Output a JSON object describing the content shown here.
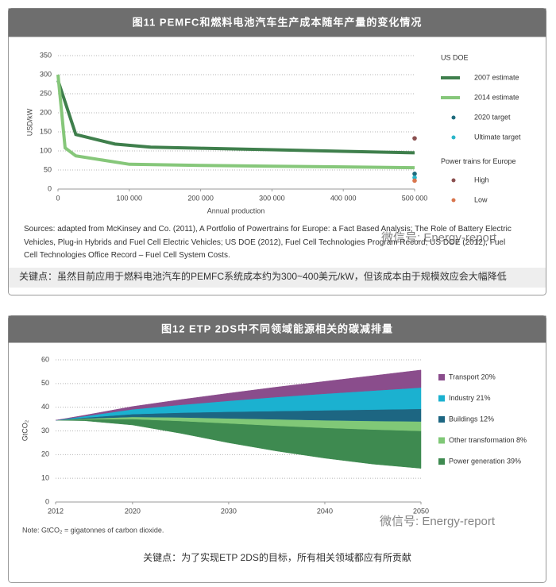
{
  "chart_data": [
    {
      "type": "line",
      "title": "图11 PEMFC和燃料电池汽车生产成本随年产量的变化情况",
      "y_label": "USD/kW",
      "x_label": "Annual production",
      "xlim": [
        0,
        500000
      ],
      "xticks": [
        0,
        {
          "value": 100000,
          "label": "100 000"
        },
        {
          "value": 200000,
          "label": "200 000"
        },
        {
          "value": 300000,
          "label": "300 000"
        },
        {
          "value": 400000,
          "label": "400 000"
        },
        {
          "value": 500000,
          "label": "500 000"
        }
      ],
      "ylim": [
        0,
        350
      ],
      "yticks": [
        0,
        50,
        100,
        150,
        200,
        250,
        300,
        350
      ],
      "grid": true,
      "series_groups": [
        {
          "title": "US DOE",
          "series": [
            {
              "name": "2007 estimate",
              "style": "line",
              "color": "#3f7f4c",
              "x": [
                0,
                25000,
                80000,
                130000,
                200000,
                300000,
                400000,
                500000
              ],
              "values": [
                285,
                143,
                118,
                110,
                107,
                103,
                99,
                95
              ]
            },
            {
              "name": "2014 estimate",
              "style": "line",
              "color": "#86c77a",
              "x": [
                0,
                10000,
                25000,
                100000,
                200000,
                300000,
                400000,
                500000
              ],
              "values": [
                300,
                108,
                87,
                65,
                62,
                60,
                58,
                56
              ]
            },
            {
              "name": "2020 target",
              "style": "marker",
              "color": "#1f6b7c",
              "x": [
                500000
              ],
              "values": [
                40
              ]
            },
            {
              "name": "Ultimate target",
              "style": "marker",
              "color": "#2bb6c9",
              "x": [
                500000
              ],
              "values": [
                30
              ]
            }
          ]
        },
        {
          "title": "Power trains for Europe",
          "series": [
            {
              "name": "High",
              "style": "marker",
              "color": "#8b5050",
              "x": [
                500000
              ],
              "values": [
                133
              ]
            },
            {
              "name": "Low",
              "style": "marker",
              "color": "#d9764e",
              "x": [
                500000
              ],
              "values": [
                22
              ]
            }
          ]
        }
      ],
      "source": "Sources: adapted from McKinsey and Co. (2011), A Portfolio of Powertrains for Europe: a Fact Based Analysis; The Role of Battery Electric Vehicles, Plug-in Hybrids and Fuel Cell Electric Vehicles; US DOE (2012), Fuel Cell Technologies Program Record; US DOE (2012), Fuel Cell Technologies Office Record – Fuel Cell System Costs.",
      "watermark": "微信号: Energy-report",
      "key_point": "关键点：虽然目前应用于燃料电池汽车的PEMFC系统成本约为300~400美元/kW，但该成本由于规模效应会大幅降低"
    },
    {
      "type": "area",
      "title": "图12 ETP 2DS中不同领域能源相关的碳减排量",
      "y_label": "GtCO₂",
      "xlim": [
        2012,
        2050
      ],
      "xticks": [
        2012,
        2020,
        2030,
        2040,
        2050
      ],
      "ylim": [
        0,
        60
      ],
      "yticks": [
        0,
        10,
        20,
        30,
        40,
        50,
        60
      ],
      "grid": true,
      "x": [
        2012,
        2015,
        2020,
        2025,
        2030,
        2035,
        2040,
        2045,
        2050
      ],
      "base_values": [
        34.5,
        34.3,
        32.5,
        29,
        25,
        21.5,
        18.5,
        16,
        14.2
      ],
      "series": [
        {
          "name": "Power generation 39%",
          "color": "#3e8a50",
          "values": [
            0,
            0.6,
            2.5,
            5.2,
            8.2,
            10.7,
            12.8,
            14.6,
            15.8
          ]
        },
        {
          "name": "Other transformation 8%",
          "color": "#80c877",
          "values": [
            0,
            0.3,
            0.9,
            1.5,
            2.1,
            2.7,
            3.2,
            3.6,
            4.0
          ]
        },
        {
          "name": "Buildings 12%",
          "color": "#1d6682",
          "values": [
            0,
            0.4,
            1.2,
            2.0,
            2.8,
            3.5,
            4.2,
            4.8,
            5.3
          ]
        },
        {
          "name": "Industry 21%",
          "color": "#1bb1d0",
          "values": [
            0,
            0.6,
            2.0,
            3.3,
            4.6,
            5.9,
            7.0,
            8.0,
            9.0
          ]
        },
        {
          "name": "Transport 20%",
          "color": "#8a4d8c",
          "values": [
            0,
            0.4,
            1.2,
            2.2,
            3.2,
            4.2,
            5.2,
            6.3,
            7.4
          ]
        }
      ],
      "note": "Note: GtCO₂ = gigatonnes of carbon dioxide.",
      "watermark": "微信号: Energy-report",
      "key_point": "关键点：为了实现ETP 2DS的目标，所有相关领域都应有所贡献"
    }
  ]
}
